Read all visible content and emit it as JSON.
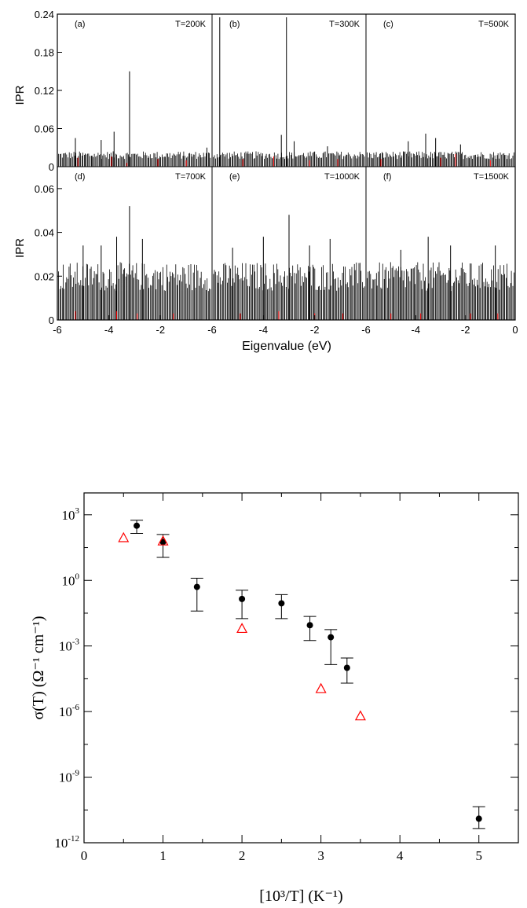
{
  "chart_data": [
    {
      "type": "bar",
      "layout": "2x3 panel grid, shared x axis",
      "ylabel": "IPR",
      "xlabel": "Eigenvalue (eV)",
      "xlim": [
        -6,
        0
      ],
      "x_ticks": [
        "-6",
        "-4",
        "-2",
        "0"
      ],
      "first_panel_x_ticks": [
        "-6",
        "-4",
        "-2"
      ],
      "rows": [
        {
          "ylim": [
            0,
            0.24
          ],
          "y_ticks": [
            {
              "value": 0,
              "label": "0"
            },
            {
              "value": 0.06,
              "label": "0.06"
            },
            {
              "value": 0.12,
              "label": "0.12"
            },
            {
              "value": 0.18,
              "label": "0.18"
            },
            {
              "value": 0.24,
              "label": "0.24"
            }
          ]
        },
        {
          "ylim": [
            0,
            0.07
          ],
          "y_ticks": [
            {
              "value": 0,
              "label": "0"
            },
            {
              "value": 0.02,
              "label": "0.02"
            },
            {
              "value": 0.04,
              "label": "0.04"
            },
            {
              "value": 0.06,
              "label": "0.06"
            }
          ]
        }
      ],
      "panels": [
        {
          "letter": "(a)",
          "temperature": "T=200K",
          "peaks": [
            {
              "x": -3.2,
              "y": 0.15
            },
            {
              "x": -5.3,
              "y": 0.045
            },
            {
              "x": -4.3,
              "y": 0.042
            },
            {
              "x": -3.8,
              "y": 0.055
            },
            {
              "x": -0.2,
              "y": 0.03
            }
          ],
          "red": [
            {
              "x": -5.2,
              "y": 0.014
            },
            {
              "x": -3.9,
              "y": 0.016
            },
            {
              "x": -3.3,
              "y": 0.006
            },
            {
              "x": -2.1,
              "y": 0.012
            },
            {
              "x": -1.0,
              "y": 0.01
            }
          ],
          "baseline": 0.022
        },
        {
          "letter": "(b)",
          "temperature": "T=300K",
          "peaks": [
            {
              "x": -5.7,
              "y": 0.235
            },
            {
              "x": -3.1,
              "y": 0.235
            },
            {
              "x": -3.3,
              "y": 0.05
            },
            {
              "x": -2.8,
              "y": 0.04
            },
            {
              "x": -1.5,
              "y": 0.032
            }
          ],
          "red": [
            {
              "x": -4.8,
              "y": 0.012
            },
            {
              "x": -3.6,
              "y": 0.016
            },
            {
              "x": -2.2,
              "y": 0.01
            },
            {
              "x": -1.1,
              "y": 0.012
            }
          ],
          "baseline": 0.022
        },
        {
          "letter": "(c)",
          "temperature": "T=500K",
          "peaks": [
            {
              "x": -4.3,
              "y": 0.04
            },
            {
              "x": -3.6,
              "y": 0.052
            },
            {
              "x": -3.2,
              "y": 0.045
            },
            {
              "x": -2.2,
              "y": 0.035
            }
          ],
          "red": [
            {
              "x": -5.4,
              "y": 0.012
            },
            {
              "x": -3.0,
              "y": 0.014
            },
            {
              "x": -2.4,
              "y": 0.02
            },
            {
              "x": -1.0,
              "y": 0.01
            }
          ],
          "baseline": 0.022
        },
        {
          "letter": "(d)",
          "temperature": "T=700K",
          "peaks": [
            {
              "x": -3.2,
              "y": 0.052
            },
            {
              "x": -3.7,
              "y": 0.038
            },
            {
              "x": -2.7,
              "y": 0.037
            },
            {
              "x": -5.0,
              "y": 0.034
            },
            {
              "x": -4.3,
              "y": 0.034
            }
          ],
          "red": [
            {
              "x": -5.3,
              "y": 0.004
            },
            {
              "x": -3.7,
              "y": 0.004
            },
            {
              "x": -2.9,
              "y": 0.003
            },
            {
              "x": -1.5,
              "y": 0.003
            }
          ],
          "baseline": 0.024
        },
        {
          "letter": "(e)",
          "temperature": "T=1000K",
          "peaks": [
            {
              "x": -3.0,
              "y": 0.048
            },
            {
              "x": -4.0,
              "y": 0.038
            },
            {
              "x": -1.4,
              "y": 0.037
            },
            {
              "x": -5.2,
              "y": 0.033
            },
            {
              "x": -2.2,
              "y": 0.034
            }
          ],
          "red": [
            {
              "x": -4.9,
              "y": 0.003
            },
            {
              "x": -3.4,
              "y": 0.004
            },
            {
              "x": -2.0,
              "y": 0.003
            },
            {
              "x": -0.9,
              "y": 0.003
            }
          ],
          "baseline": 0.024
        },
        {
          "letter": "(f)",
          "temperature": "T=1500K",
          "peaks": [
            {
              "x": -3.5,
              "y": 0.038
            },
            {
              "x": -2.6,
              "y": 0.034
            },
            {
              "x": -0.8,
              "y": 0.034
            },
            {
              "x": -4.6,
              "y": 0.032
            }
          ],
          "red": [
            {
              "x": -5.0,
              "y": 0.003
            },
            {
              "x": -3.8,
              "y": 0.003
            },
            {
              "x": -1.8,
              "y": 0.003
            },
            {
              "x": -0.7,
              "y": 0.003
            }
          ],
          "baseline": 0.024
        }
      ]
    },
    {
      "type": "scatter",
      "xlabel": "[10³/T] (K⁻¹)",
      "ylabel": "σ(T) (Ω⁻¹ cm⁻¹)",
      "xlim": [
        0,
        5.5
      ],
      "ylim_log10": [
        -12,
        4
      ],
      "x_ticks": [
        "0",
        "1",
        "2",
        "3",
        "4",
        "5"
      ],
      "y_ticks": [
        {
          "exp": 3,
          "label": "3"
        },
        {
          "exp": 0,
          "label": "0"
        },
        {
          "exp": -3,
          "label": "-3"
        },
        {
          "exp": -6,
          "label": "-6"
        },
        {
          "exp": -9,
          "label": "-9"
        },
        {
          "exp": -12,
          "label": "-12"
        }
      ],
      "y_tick_base": "10",
      "series": [
        {
          "marker": "filled-circle",
          "color": "#000000",
          "points": [
            {
              "x": 0.667,
              "log10_y": 2.5,
              "log10_err_lo": 2.15,
              "log10_err_hi": 2.75
            },
            {
              "x": 1.0,
              "log10_y": 1.75,
              "log10_err_lo": 1.05,
              "log10_err_hi": 2.1
            },
            {
              "x": 1.43,
              "log10_y": -0.3,
              "log10_err_lo": -1.4,
              "log10_err_hi": 0.1
            },
            {
              "x": 2.0,
              "log10_y": -0.85,
              "log10_err_lo": -1.75,
              "log10_err_hi": -0.45
            },
            {
              "x": 2.5,
              "log10_y": -1.05,
              "log10_err_lo": -1.75,
              "log10_err_hi": -0.65
            },
            {
              "x": 2.86,
              "log10_y": -2.05,
              "log10_err_lo": -2.75,
              "log10_err_hi": -1.65
            },
            {
              "x": 3.125,
              "log10_y": -2.6,
              "log10_err_lo": -3.85,
              "log10_err_hi": -2.25
            },
            {
              "x": 3.33,
              "log10_y": -4.0,
              "log10_err_lo": -4.7,
              "log10_err_hi": -3.55
            },
            {
              "x": 5.0,
              "log10_y": -10.9,
              "log10_err_lo": -11.35,
              "log10_err_hi": -10.35
            }
          ]
        },
        {
          "marker": "open-triangle",
          "color": "#ff0000",
          "points": [
            {
              "x": 0.5,
              "log10_y": 1.95
            },
            {
              "x": 1.0,
              "log10_y": 1.8
            },
            {
              "x": 2.0,
              "log10_y": -2.2
            },
            {
              "x": 3.0,
              "log10_y": -4.95
            },
            {
              "x": 3.5,
              "log10_y": -6.2
            }
          ]
        }
      ]
    }
  ]
}
